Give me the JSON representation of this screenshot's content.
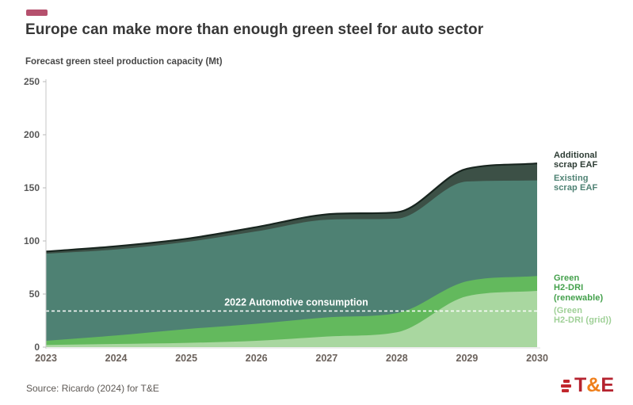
{
  "header": {
    "title": "Europe can make more than enough green steel for auto sector",
    "subtitle": "Forecast green steel production capacity (Mt)"
  },
  "accent": {
    "dash_color": "#b5506d"
  },
  "chart_data": {
    "type": "area",
    "stacked": true,
    "title": "Forecast green steel production capacity (Mt)",
    "xlabel": "",
    "ylabel": "Mt",
    "x": [
      2023,
      2024,
      2025,
      2026,
      2027,
      2028,
      2029,
      2030
    ],
    "ylim": [
      0,
      250
    ],
    "yticks": [
      0,
      50,
      100,
      150,
      200,
      250
    ],
    "grid": false,
    "legend_position": "right-outside",
    "series": [
      {
        "name": "Green H2-DRI (grid)",
        "values": [
          2,
          3,
          4,
          6,
          10,
          14,
          48,
          53
        ],
        "color": "#a9d7a0"
      },
      {
        "name": "Green H2-DRI (renewable)",
        "values": [
          4,
          8,
          13,
          16,
          18,
          18,
          14,
          14
        ],
        "color": "#63b95d"
      },
      {
        "name": "Existing scrap EAF",
        "values": [
          82,
          81,
          82,
          87,
          92,
          89,
          94,
          90
        ],
        "color": "#4e8173"
      },
      {
        "name": "Additional scrap EAF",
        "values": [
          2,
          3,
          3,
          4,
          5,
          6,
          12,
          16
        ],
        "color": "#3c5046"
      }
    ],
    "cumulative_tops": {
      "green_h2_dri_grid": [
        2,
        3,
        4,
        6,
        10,
        14,
        48,
        53
      ],
      "green_h2_dri_renewable": [
        6,
        11,
        17,
        22,
        28,
        32,
        62,
        67
      ],
      "existing_scrap_eaf": [
        88,
        92,
        99,
        109,
        120,
        121,
        156,
        157
      ],
      "additional_scrap_eaf": [
        90,
        95,
        102,
        113,
        125,
        127,
        168,
        173
      ]
    },
    "top_line_color": "#18251f",
    "axis_color": "#c7c7c7",
    "ytick_color": "#585858",
    "xtick_color": "#6b625c",
    "annotation": {
      "label": "2022 Automotive consumption",
      "value": 34,
      "line_style": "dashed",
      "color": "#ffffff"
    }
  },
  "legend": {
    "items": [
      {
        "label": "Additional\nscrap EAF",
        "color": "#2c3b33"
      },
      {
        "label": "Existing\nscrap EAF",
        "color": "#4e8173"
      },
      {
        "label": "Green\nH2-DRI\n(renewable)",
        "color": "#43a04b"
      },
      {
        "label": "(Green\nH2-DRI (grid))",
        "color": "#9fd097"
      }
    ]
  },
  "footer": {
    "source": "Source: Ricardo (2024) for T&E"
  },
  "logo": {
    "t": "T",
    "amp": "&",
    "e": "E",
    "red": "#b5232f",
    "orange": "#ef7f1a",
    "bars_color": "#c1272d"
  }
}
